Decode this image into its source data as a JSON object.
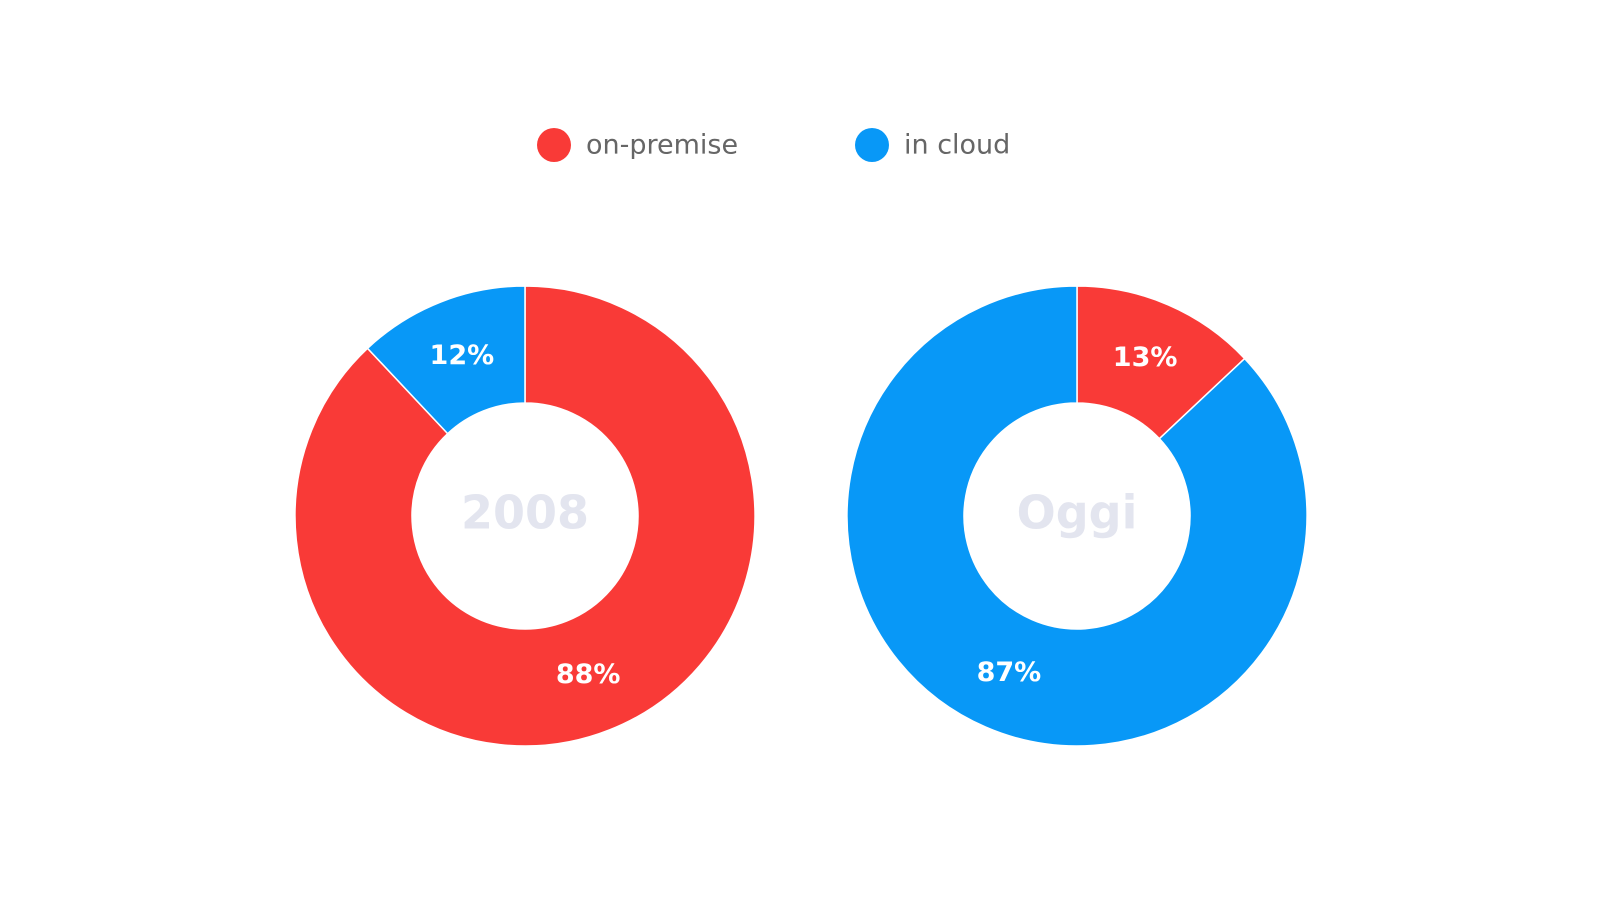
{
  "chart_data": [
    {
      "type": "donut",
      "center_label": "2008",
      "categories": [
        "on-premise",
        "in cloud"
      ],
      "values": [
        88,
        12
      ],
      "value_labels": [
        "88%",
        "12%"
      ],
      "colors": [
        "#f93a37",
        "#0898f7"
      ]
    },
    {
      "type": "donut",
      "center_label": "Oggi",
      "categories": [
        "on-premise",
        "in cloud"
      ],
      "values": [
        13,
        87
      ],
      "value_labels": [
        "13%",
        "87%"
      ],
      "colors": [
        "#f93a37",
        "#0898f7"
      ]
    }
  ]
}
